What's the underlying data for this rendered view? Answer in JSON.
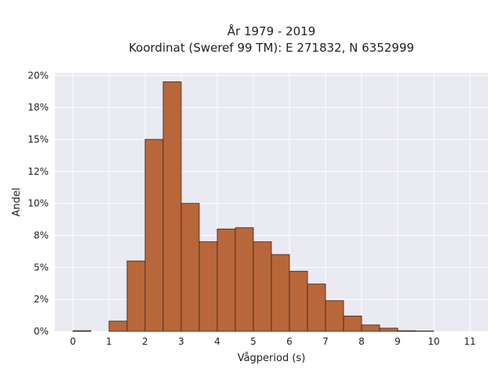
{
  "chart_data": {
    "type": "bar",
    "title": "År 1979 - 2019",
    "subtitle": "Koordinat (Sweref 99 TM): E 271832, N 6352999",
    "xlabel": "Vågperiod (s)",
    "ylabel": "Andel",
    "bin_width": 0.5,
    "x_ticks": [
      0,
      1,
      2,
      3,
      4,
      5,
      6,
      7,
      8,
      9,
      10,
      11
    ],
    "x_tick_labels": [
      "0",
      "1",
      "2",
      "3",
      "4",
      "5",
      "6",
      "7",
      "8",
      "9",
      "10",
      "11"
    ],
    "y_ticks": [
      0,
      2.5,
      5,
      7.5,
      10,
      12.5,
      15,
      17.5,
      20
    ],
    "y_tick_labels": [
      "0%",
      "2%",
      "5%",
      "8%",
      "10%",
      "12%",
      "15%",
      "18%",
      "20%"
    ],
    "xlim": [
      -0.5,
      11.5
    ],
    "ylim": [
      0,
      20.2
    ],
    "grid": true,
    "bins": [
      {
        "x0": 0.0,
        "value": 0.05
      },
      {
        "x0": 0.5,
        "value": 0.0
      },
      {
        "x0": 1.0,
        "value": 0.8
      },
      {
        "x0": 1.5,
        "value": 5.5
      },
      {
        "x0": 2.0,
        "value": 15.0
      },
      {
        "x0": 2.5,
        "value": 19.5
      },
      {
        "x0": 3.0,
        "value": 10.0
      },
      {
        "x0": 3.5,
        "value": 7.0
      },
      {
        "x0": 4.0,
        "value": 8.0
      },
      {
        "x0": 4.5,
        "value": 8.1
      },
      {
        "x0": 5.0,
        "value": 7.0
      },
      {
        "x0": 5.5,
        "value": 6.0
      },
      {
        "x0": 6.0,
        "value": 4.7
      },
      {
        "x0": 6.5,
        "value": 3.7
      },
      {
        "x0": 7.0,
        "value": 2.4
      },
      {
        "x0": 7.5,
        "value": 1.2
      },
      {
        "x0": 8.0,
        "value": 0.5
      },
      {
        "x0": 8.5,
        "value": 0.25
      },
      {
        "x0": 9.0,
        "value": 0.05
      },
      {
        "x0": 9.5,
        "value": 0.03
      }
    ],
    "colors": {
      "bar_fill": "#b8673a",
      "bar_stroke": "#3a2418",
      "plot_background": "#eaeaf2",
      "grid": "#ffffff"
    }
  }
}
